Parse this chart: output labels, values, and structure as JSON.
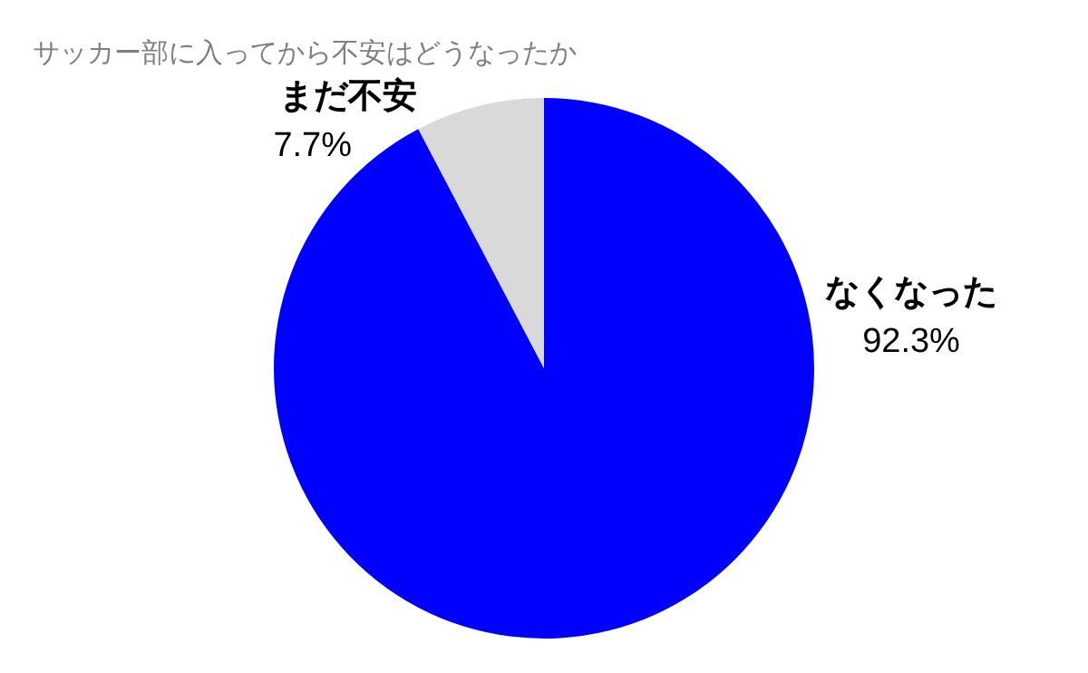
{
  "chart_data": {
    "type": "pie",
    "title": "サッカー部に入ってから不安はどうなったか",
    "categories": [
      "なくなった",
      "まだ不安"
    ],
    "values": [
      92.3,
      7.7
    ],
    "colors": [
      "#0000ff",
      "#d9d9d9"
    ],
    "value_labels": [
      "92.3%",
      "7.7%"
    ],
    "legend": false
  }
}
